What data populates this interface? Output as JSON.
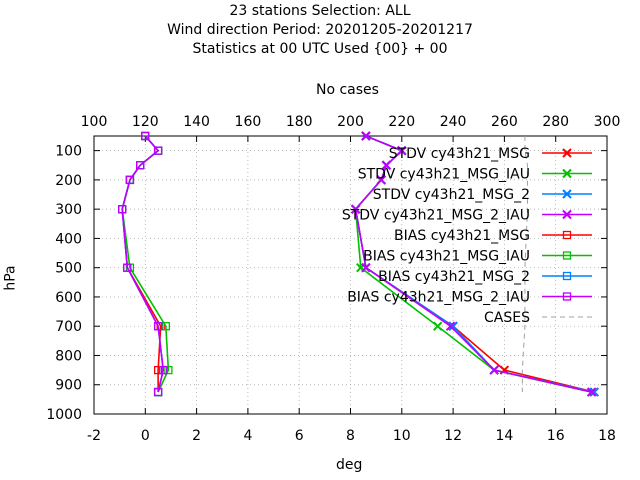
{
  "title_lines": [
    "23 stations Selection: ALL",
    "Wind direction  Period: 20201205-20201217",
    "Statistics at 00 UTC  Used {00} + 00"
  ],
  "chart_data": {
    "type": "line",
    "xlabel": "deg",
    "ylabel": "hPa",
    "x2label": "No cases",
    "xlim": [
      -2,
      18
    ],
    "x2lim": [
      100,
      300
    ],
    "ylim": [
      1000,
      50
    ],
    "y_reversed": true,
    "grid": true,
    "legend_position": "top-right",
    "x_ticks": [
      -2,
      0,
      2,
      4,
      6,
      8,
      10,
      12,
      14,
      16,
      18
    ],
    "x2_ticks": [
      100,
      120,
      140,
      160,
      180,
      200,
      220,
      240,
      260,
      280,
      300
    ],
    "y_ticks": [
      100,
      200,
      300,
      400,
      500,
      600,
      700,
      800,
      900,
      1000
    ],
    "levels": [
      50,
      100,
      150,
      200,
      300,
      400,
      500,
      700,
      850,
      925
    ],
    "series": [
      {
        "name": "STDV cy43h21_MSG",
        "color": "#ff0000",
        "marker": "x",
        "x": [
          8.6,
          10.0,
          9.4,
          9.2,
          8.2,
          null,
          8.6,
          12.0,
          14.0,
          17.5
        ],
        "y": [
          50,
          100,
          150,
          200,
          300,
          null,
          500,
          700,
          850,
          925
        ]
      },
      {
        "name": "STDV cy43h21_MSG_IAU",
        "color": "#00c000",
        "marker": "x",
        "x": [
          8.6,
          10.0,
          9.4,
          9.2,
          8.2,
          null,
          8.4,
          11.4,
          13.6,
          17.4
        ],
        "y": [
          50,
          100,
          150,
          200,
          300,
          null,
          500,
          700,
          850,
          925
        ]
      },
      {
        "name": "STDV cy43h21_MSG_2",
        "color": "#0080ff",
        "marker": "x",
        "x": [
          8.6,
          10.0,
          9.4,
          9.2,
          8.2,
          null,
          8.6,
          12.0,
          13.6,
          17.5
        ],
        "y": [
          50,
          100,
          150,
          200,
          300,
          null,
          500,
          700,
          850,
          925
        ]
      },
      {
        "name": "STDV cy43h21_MSG_2_IAU",
        "color": "#c000ff",
        "marker": "x",
        "x": [
          8.6,
          10.0,
          9.4,
          9.2,
          8.2,
          null,
          8.6,
          11.9,
          13.6,
          17.4
        ],
        "y": [
          50,
          100,
          150,
          200,
          300,
          null,
          500,
          700,
          850,
          925
        ]
      },
      {
        "name": "BIAS cy43h21_MSG",
        "color": "#ff0000",
        "marker": "square",
        "x": [
          0.0,
          0.5,
          -0.2,
          -0.6,
          -0.9,
          null,
          -0.7,
          0.6,
          0.5,
          0.5
        ],
        "y": [
          50,
          100,
          150,
          200,
          300,
          null,
          500,
          700,
          850,
          925
        ]
      },
      {
        "name": "BIAS cy43h21_MSG_IAU",
        "color": "#00c000",
        "marker": "square",
        "x": [
          0.0,
          0.5,
          -0.2,
          -0.6,
          -0.9,
          null,
          -0.6,
          0.8,
          0.9,
          0.5
        ],
        "y": [
          50,
          100,
          150,
          200,
          300,
          null,
          500,
          700,
          850,
          925
        ]
      },
      {
        "name": "BIAS cy43h21_MSG_2",
        "color": "#0080ff",
        "marker": "square",
        "x": [
          0.0,
          0.5,
          -0.2,
          -0.6,
          -0.9,
          null,
          -0.7,
          0.5,
          0.7,
          0.5
        ],
        "y": [
          50,
          100,
          150,
          200,
          300,
          null,
          500,
          700,
          850,
          925
        ]
      },
      {
        "name": "BIAS cy43h21_MSG_2_IAU",
        "color": "#c000ff",
        "marker": "square",
        "x": [
          0.0,
          0.5,
          -0.2,
          -0.6,
          -0.9,
          null,
          -0.7,
          0.5,
          0.7,
          0.5
        ],
        "y": [
          50,
          100,
          150,
          200,
          300,
          null,
          500,
          700,
          850,
          925
        ]
      },
      {
        "name": "CASES",
        "color": "#a0a0a0",
        "marker": "none",
        "dash": true,
        "x2": [
          268,
          268,
          269,
          269,
          269,
          null,
          268,
          268,
          267,
          267
        ],
        "y": [
          50,
          100,
          150,
          200,
          300,
          null,
          500,
          700,
          850,
          925
        ]
      }
    ]
  }
}
